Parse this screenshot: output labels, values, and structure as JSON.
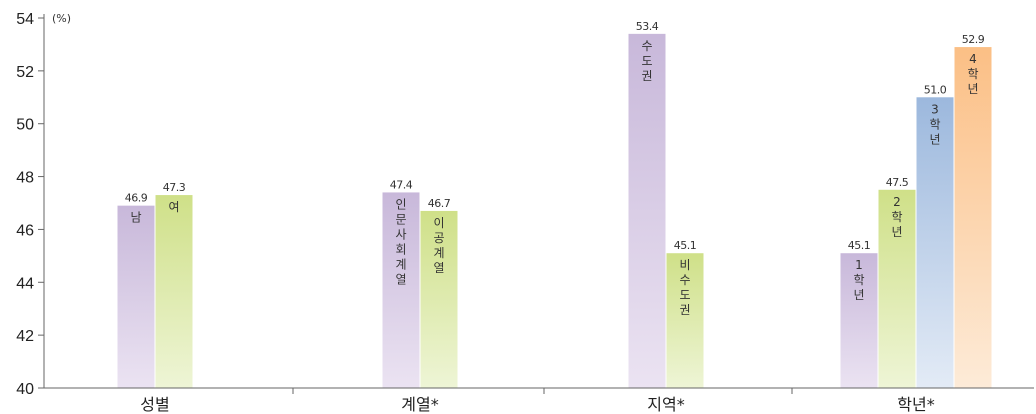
{
  "chart_data": {
    "type": "bar",
    "unit": "(%)",
    "ylim": [
      40,
      54
    ],
    "yticks": [
      40,
      42,
      44,
      46,
      48,
      50,
      52,
      54
    ],
    "groups": [
      {
        "label": "성별",
        "bars": [
          {
            "label": "남",
            "value": 46.9,
            "value_text": "46.9",
            "color": "purple"
          },
          {
            "label": "여",
            "value": 47.3,
            "value_text": "47.3",
            "color": "green"
          }
        ]
      },
      {
        "label": "계열*",
        "bars": [
          {
            "label": "인문사회계열",
            "value": 47.4,
            "value_text": "47.4",
            "color": "purple"
          },
          {
            "label": "이공계열",
            "value": 46.7,
            "value_text": "46.7",
            "color": "green"
          }
        ]
      },
      {
        "label": "지역*",
        "bars": [
          {
            "label": "수도권",
            "value": 53.4,
            "value_text": "53.4",
            "color": "purple"
          },
          {
            "label": "비수도권",
            "value": 45.1,
            "value_text": "45.1",
            "color": "green"
          }
        ]
      },
      {
        "label": "학년*",
        "bars": [
          {
            "label": "1학년",
            "value": 45.1,
            "value_text": "45.1",
            "color": "purple"
          },
          {
            "label": "2학년",
            "value": 47.5,
            "value_text": "47.5",
            "color": "green"
          },
          {
            "label": "3학년",
            "value": 51.0,
            "value_text": "51.0",
            "color": "blue"
          },
          {
            "label": "4학년",
            "value": 52.9,
            "value_text": "52.9",
            "color": "orange"
          }
        ]
      }
    ],
    "colors": {
      "purple": [
        "#c8b8da",
        "#ebe3f2"
      ],
      "green": [
        "#cfe088",
        "#eef5d6"
      ],
      "blue": [
        "#9cb8dd",
        "#e3ebf6"
      ],
      "orange": [
        "#fbbf85",
        "#fdebd8"
      ]
    }
  }
}
